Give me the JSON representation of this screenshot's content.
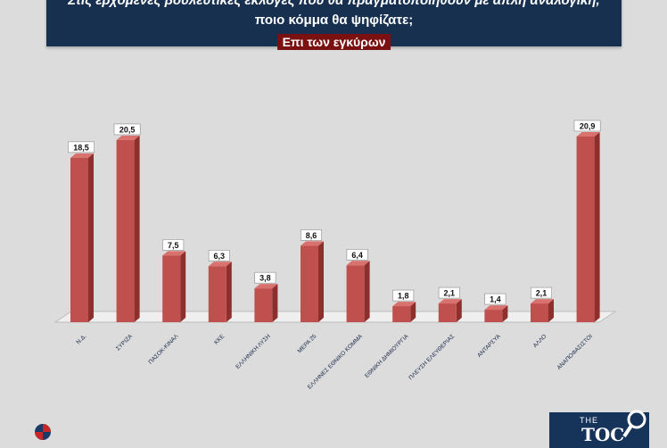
{
  "header": {
    "line1": "Στις ερχόμενες βουλευτικές εκλογές που θα πραγματοποιηθούν με απλή αναλογική,",
    "line2": "ποιο κόμμα θα ψηφίζατε;",
    "subtitle": "Επι των εγκύρων"
  },
  "colors": {
    "bar_front": "#c0504d",
    "bar_side": "#8c2f2d",
    "bar_top": "#d9726f",
    "floor": "#efefef",
    "header_bg": "#17304f",
    "subtitle_bg": "#7a1010"
  },
  "chart_data": {
    "type": "bar",
    "categories": [
      "Ν.Δ.",
      "ΣΥΡΙΖΑ",
      "ΠΑΣΟΚ-ΚΙΝΑΛ",
      "ΚΚΕ",
      "ΕΛΛΗΝΙΚΗ ΛΥΣΗ",
      "ΜΕΡΑ 25",
      "ΕΛΛΗΝΕΣ ΕΘΝΙΚΟ ΚΟΜΜΑ",
      "ΕΘΝΙΚΗ ΔΗΜΙΟΥΡΓΙΑ",
      "ΠΛΕΥΣΗ ΕΛΕΥΘΕΡΙΑΣ",
      "ΑΝΤΑΡΣΥΑ",
      "ΑΛΛΟ",
      "ΑΝΑΠΟΦΑΣΙΣΤΟΙ"
    ],
    "values": [
      18.5,
      20.5,
      7.5,
      6.3,
      3.8,
      8.6,
      6.4,
      1.8,
      2.1,
      1.4,
      2.1,
      20.9
    ],
    "data_labels": [
      "18,5",
      "20,5",
      "7,5",
      "6,3",
      "3,8",
      "8,6",
      "6,4",
      "1,8",
      "2,1",
      "1,4",
      "2,1",
      "20,9"
    ],
    "ylim": [
      0,
      22
    ],
    "grid": false,
    "legend": "none",
    "style": "3d"
  },
  "logos": {
    "right_small": "THE",
    "right_big": "TOC"
  }
}
